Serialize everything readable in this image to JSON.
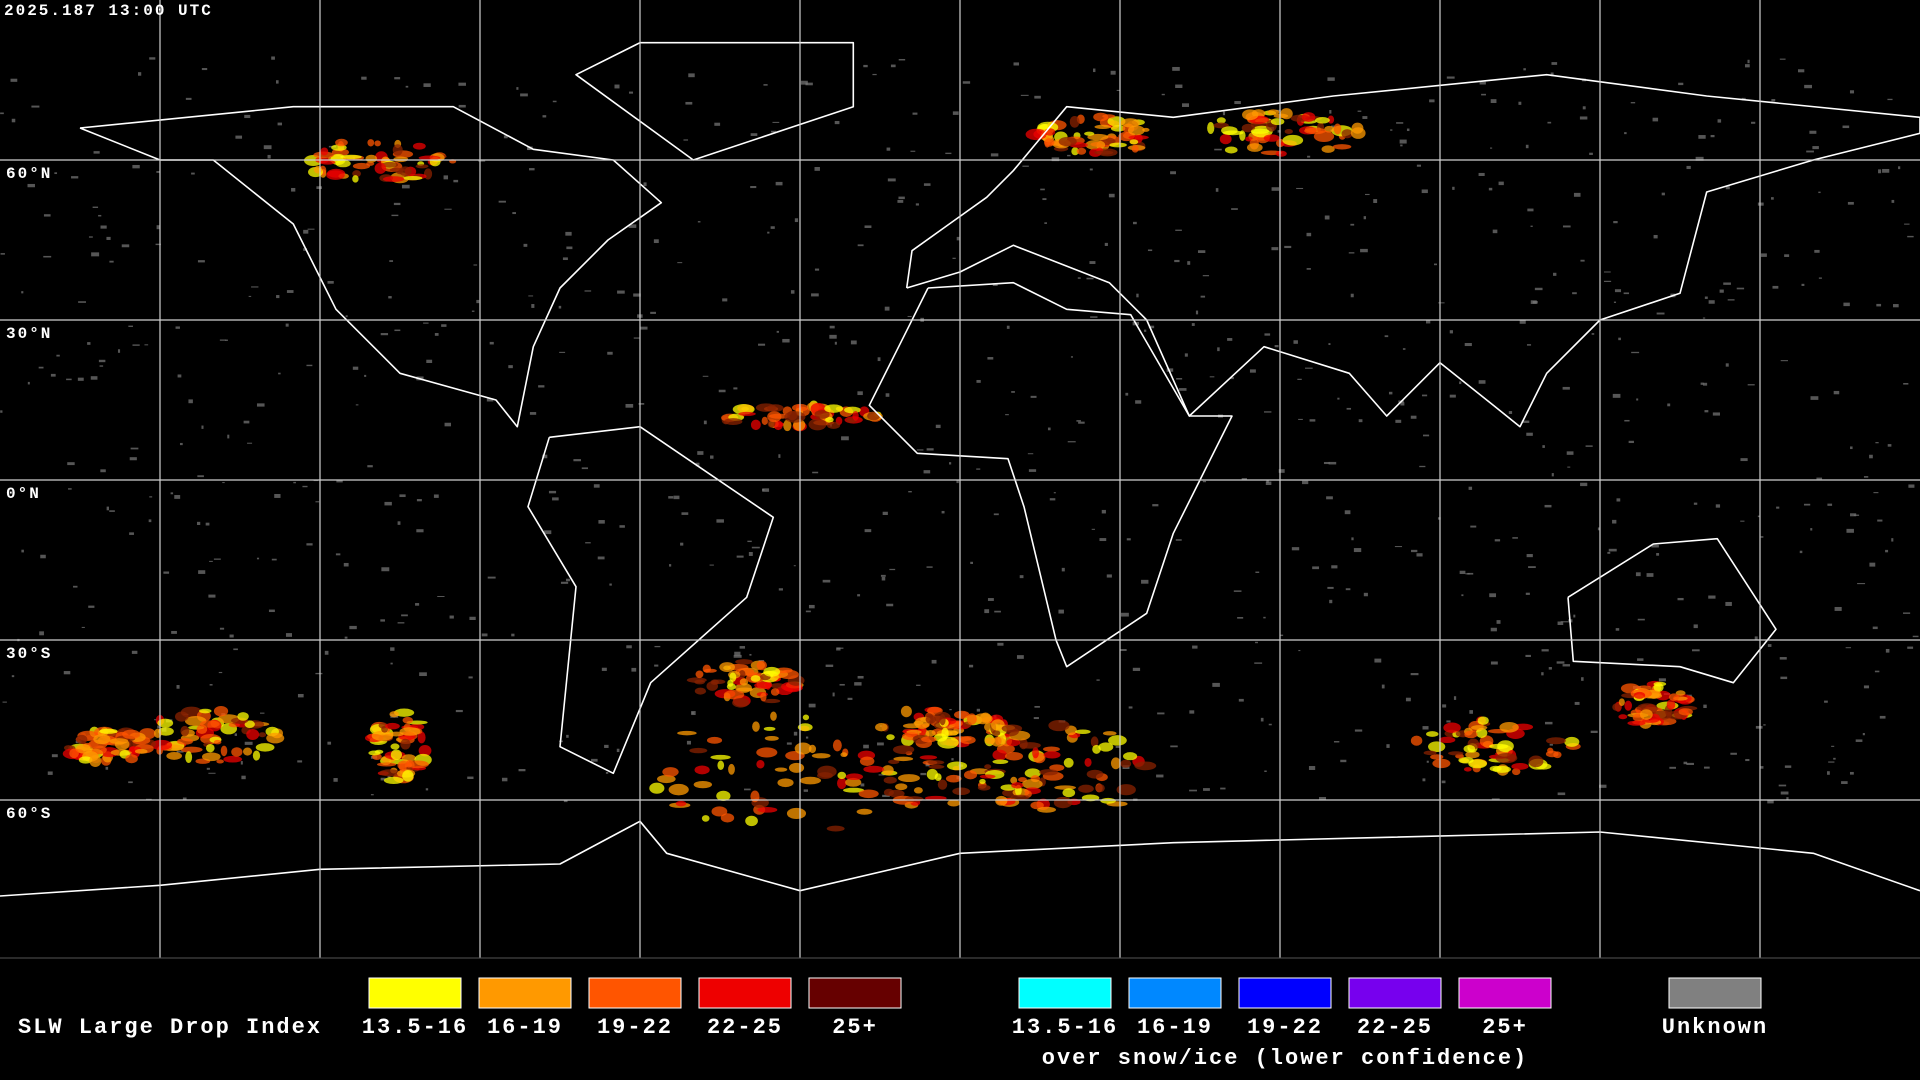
{
  "header": {
    "timestamp": "2025.187 13:00 UTC"
  },
  "map": {
    "latitude_labels": [
      "60°N",
      "30°N",
      "0°N",
      "30°S",
      "60°S"
    ]
  },
  "legend": {
    "title": "SLW Large Drop Index",
    "groups": [
      {
        "items": [
          {
            "label": "13.5-16",
            "color": "#ffff00"
          },
          {
            "label": "16-19",
            "color": "#ff9900"
          },
          {
            "label": "19-22",
            "color": "#ff5500"
          },
          {
            "label": "22-25",
            "color": "#ee0000"
          },
          {
            "label": "25+",
            "color": "#660000"
          }
        ]
      },
      {
        "items": [
          {
            "label": "13.5-16",
            "color": "#00ffff"
          },
          {
            "label": "16-19",
            "color": "#0088ff"
          },
          {
            "label": "19-22",
            "color": "#0000ff"
          },
          {
            "label": "22-25",
            "color": "#7700ee"
          },
          {
            "label": "25+",
            "color": "#cc00cc"
          }
        ],
        "caption": "over snow/ice (lower confidence)"
      },
      {
        "items": [
          {
            "label": "Unknown",
            "color": "#808080"
          }
        ]
      }
    ]
  }
}
